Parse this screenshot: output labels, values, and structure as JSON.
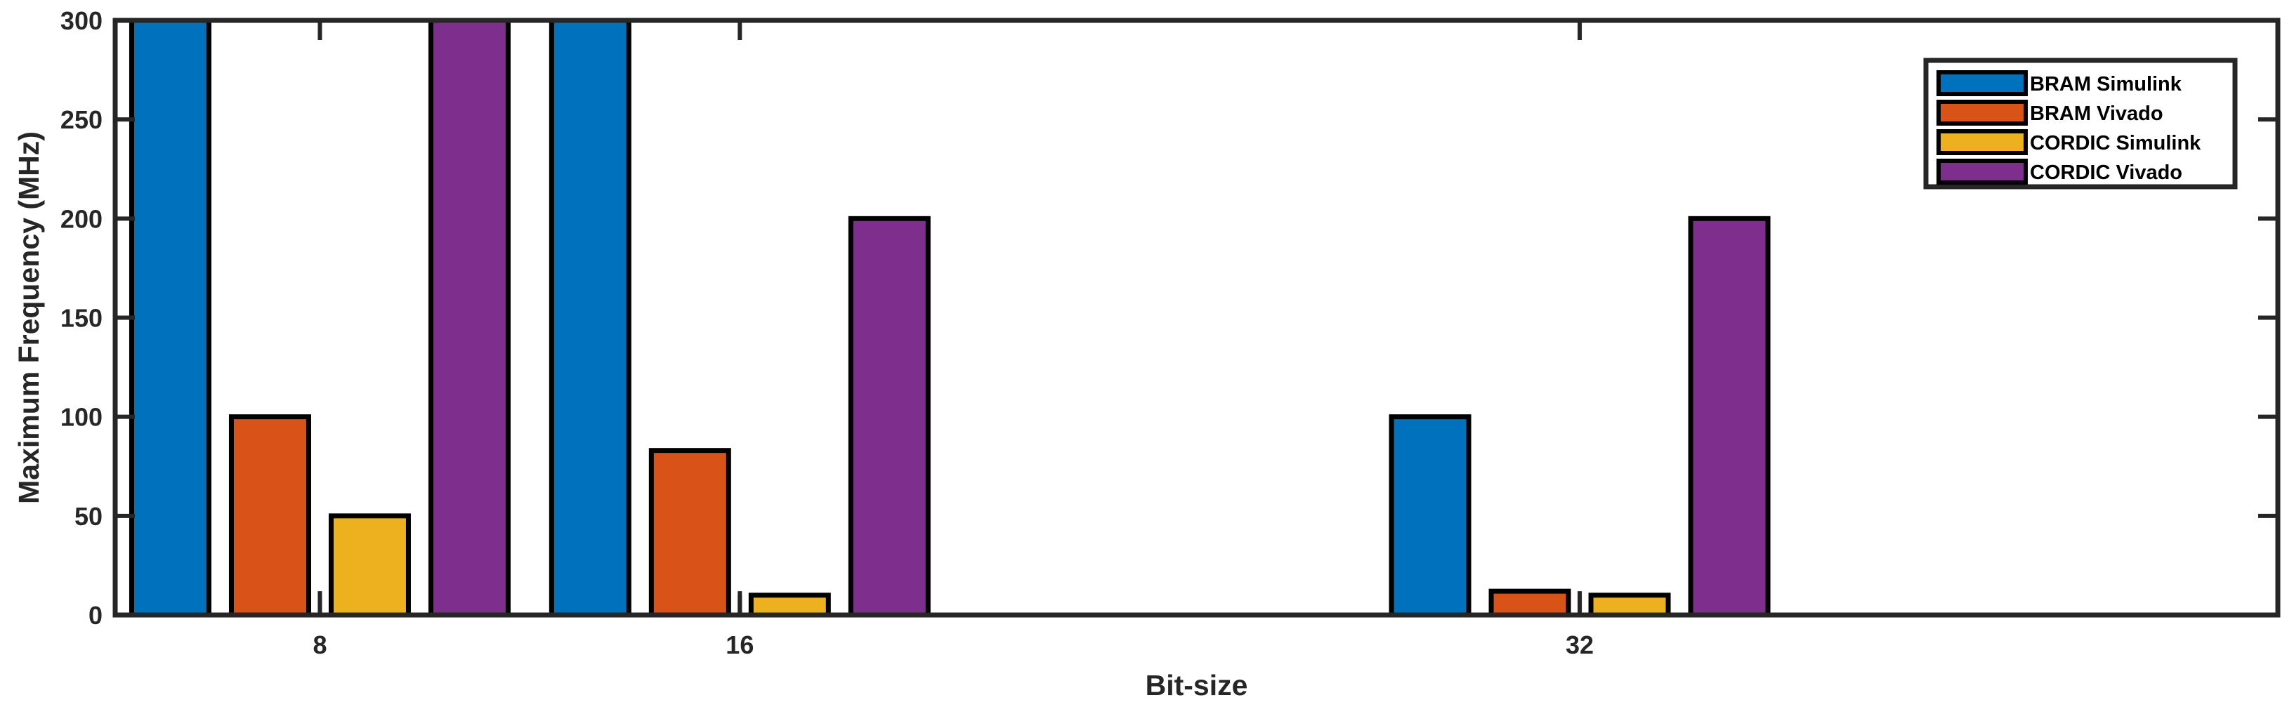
{
  "chart_data": {
    "type": "bar",
    "title": "",
    "xlabel": "Bit-size",
    "ylabel": "Maximum Frequency (MHz)",
    "x": [
      8,
      16,
      32
    ],
    "xlim": [
      4.1,
      45.3
    ],
    "ylim": [
      0,
      300
    ],
    "yticks": [
      0,
      50,
      100,
      150,
      200,
      250,
      300
    ],
    "grid": false,
    "legend_position": "top-right",
    "series": [
      {
        "name": "BRAM Simulink",
        "values": [
          300,
          300,
          100
        ],
        "color": "#0072BD"
      },
      {
        "name": "BRAM Vivado",
        "values": [
          100,
          83,
          12
        ],
        "color": "#D95319"
      },
      {
        "name": "CORDIC Simulink",
        "values": [
          50,
          10,
          10
        ],
        "color": "#EDB120"
      },
      {
        "name": "CORDIC Vivado",
        "values": [
          300,
          200,
          200
        ],
        "color": "#7E2F8E"
      }
    ],
    "error_markers": [
      {
        "x": 8,
        "value": 12
      },
      {
        "x": 16,
        "value": 12
      },
      {
        "x": 32,
        "value": 12
      }
    ]
  }
}
